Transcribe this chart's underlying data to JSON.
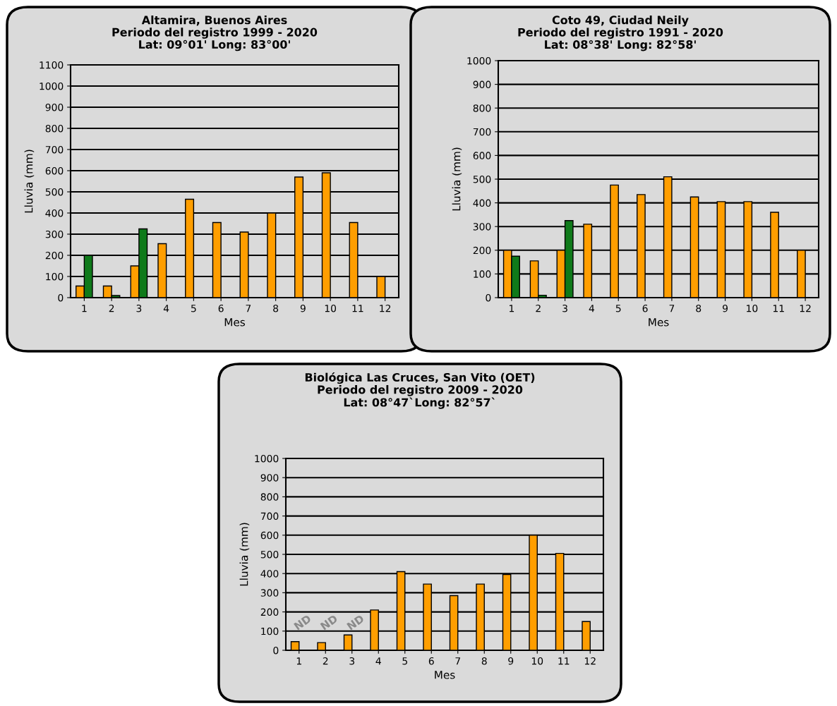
{
  "chart_data": [
    {
      "type": "bar",
      "title": "Altamira, Buenos Aires",
      "subtitle": "Periodo del registro 1999 - 2020\nLat: 09°01' Long: 83°00'",
      "xlabel": "Mes",
      "ylabel": "Lluvia (mm)",
      "categories": [
        "1",
        "2",
        "3",
        "4",
        "5",
        "6",
        "7",
        "8",
        "9",
        "10",
        "11",
        "12"
      ],
      "series": [
        {
          "color": "#ff9e00",
          "values": [
            55,
            55,
            150,
            255,
            465,
            355,
            310,
            400,
            570,
            590,
            355,
            100
          ]
        },
        {
          "color": "#0f7a1a",
          "values": [
            200,
            10,
            325,
            null,
            null,
            null,
            null,
            null,
            null,
            null,
            null,
            null
          ]
        }
      ],
      "ylim": [
        0,
        1100
      ],
      "yticks": [
        0,
        100,
        200,
        300,
        400,
        500,
        600,
        700,
        800,
        900,
        1000,
        1100
      ],
      "grid": "y",
      "legend": false
    },
    {
      "type": "bar",
      "title": "Coto 49, Ciudad Neily",
      "subtitle": "Periodo del registro 1991 - 2020\nLat: 08°38' Long: 82°58'",
      "xlabel": "Mes",
      "ylabel": "Lluvia (mm)",
      "categories": [
        "1",
        "2",
        "3",
        "4",
        "5",
        "6",
        "7",
        "8",
        "9",
        "10",
        "11",
        "12"
      ],
      "series": [
        {
          "color": "#ff9e00",
          "values": [
            200,
            155,
            200,
            310,
            475,
            435,
            510,
            425,
            405,
            405,
            360,
            200
          ]
        },
        {
          "color": "#0f7a1a",
          "values": [
            175,
            10,
            325,
            null,
            null,
            null,
            null,
            null,
            null,
            null,
            null,
            null
          ]
        }
      ],
      "ylim": [
        0,
        1000
      ],
      "yticks": [
        0,
        100,
        200,
        300,
        400,
        500,
        600,
        700,
        800,
        900,
        1000
      ],
      "grid": "y",
      "legend": false
    },
    {
      "type": "bar",
      "title": "Biológica Las Cruces, San Vito (OET)",
      "subtitle": "Periodo del registro 2009 - 2020\nLat: 08°47`Long: 82°57`",
      "xlabel": "Mes",
      "ylabel": "Lluvia (mm)",
      "categories": [
        "1",
        "2",
        "3",
        "4",
        "5",
        "6",
        "7",
        "8",
        "9",
        "10",
        "11",
        "12"
      ],
      "series": [
        {
          "color": "#ff9e00",
          "values": [
            45,
            40,
            80,
            210,
            410,
            345,
            285,
            345,
            395,
            600,
            505,
            150
          ]
        }
      ],
      "annotations": [
        {
          "text": "ND",
          "x": "1",
          "y": 0
        },
        {
          "text": "ND",
          "x": "2",
          "y": 0
        },
        {
          "text": "ND",
          "x": "3",
          "y": 0
        }
      ],
      "ylim": [
        0,
        1000
      ],
      "yticks": [
        0,
        100,
        200,
        300,
        400,
        500,
        600,
        700,
        800,
        900,
        1000
      ],
      "grid": "y",
      "legend": false
    }
  ]
}
